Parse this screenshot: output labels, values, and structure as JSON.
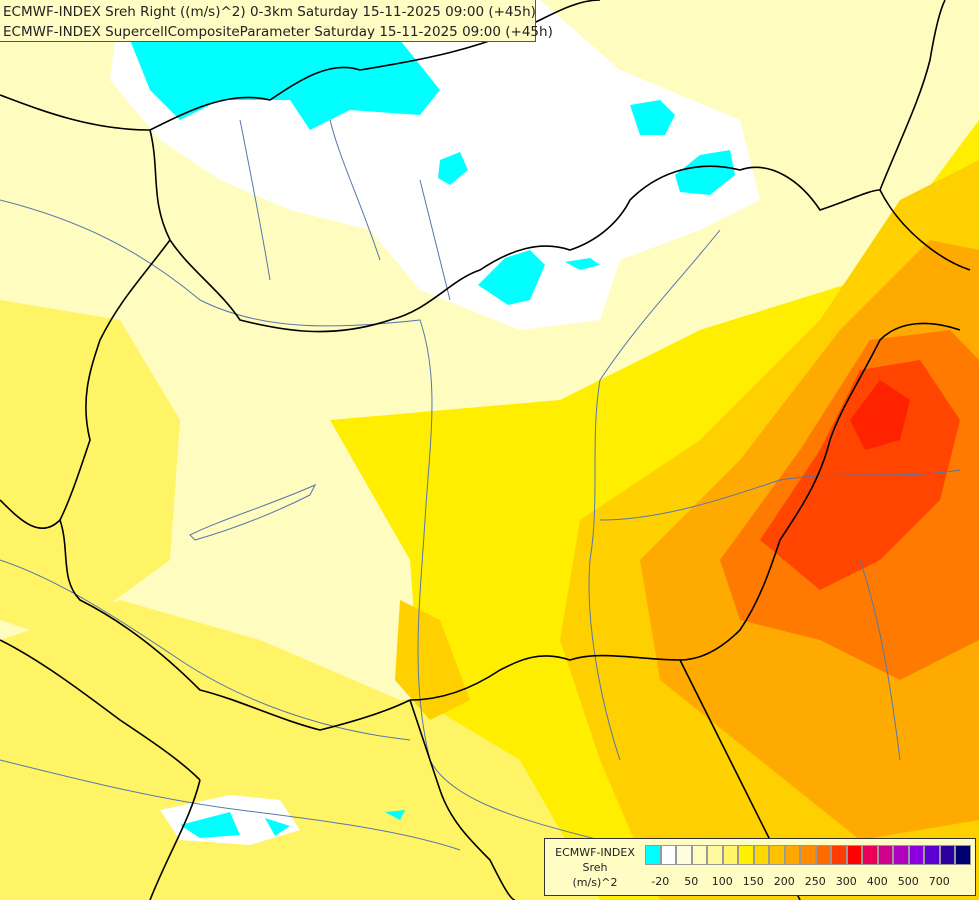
{
  "title": {
    "line1": "ECMWF-INDEX Sreh Right ((m/s)^2) 0-3km Saturday 15-11-2025 09:00 (+45h)",
    "line2": "ECMWF-INDEX SupercellCompositeParameter Saturday 15-11-2025 09:00 (+45h)"
  },
  "legend": {
    "line1": "ECMWF-INDEX",
    "line2": "Sreh",
    "line3": "(m/s)^2",
    "colors": [
      "#00ffff",
      "#ffffff",
      "#fffde0",
      "#fffcc0",
      "#fff9a0",
      "#fff566",
      "#ffef00",
      "#ffd800",
      "#ffc000",
      "#ffa800",
      "#ff8c00",
      "#ff6a00",
      "#ff3b00",
      "#ff0000",
      "#e8005a",
      "#d0008a",
      "#b000c0",
      "#8a00e0",
      "#5a00d0",
      "#2a00a0",
      "#000070"
    ],
    "labels": [
      "-20",
      "50",
      "100",
      "150",
      "200",
      "250",
      "300",
      "400",
      "500",
      "700"
    ]
  },
  "map_colors": {
    "cyan": "#00ffff",
    "white": "#ffffff",
    "pale": "#fffcc0",
    "light_yellow": "#fff890",
    "yellow": "#ffee00",
    "gold": "#ffd000",
    "orange": "#ffaa00",
    "dark_orange": "#ff7a00",
    "red_orange": "#ff4000",
    "border": "#000000",
    "river": "#5577aa"
  }
}
